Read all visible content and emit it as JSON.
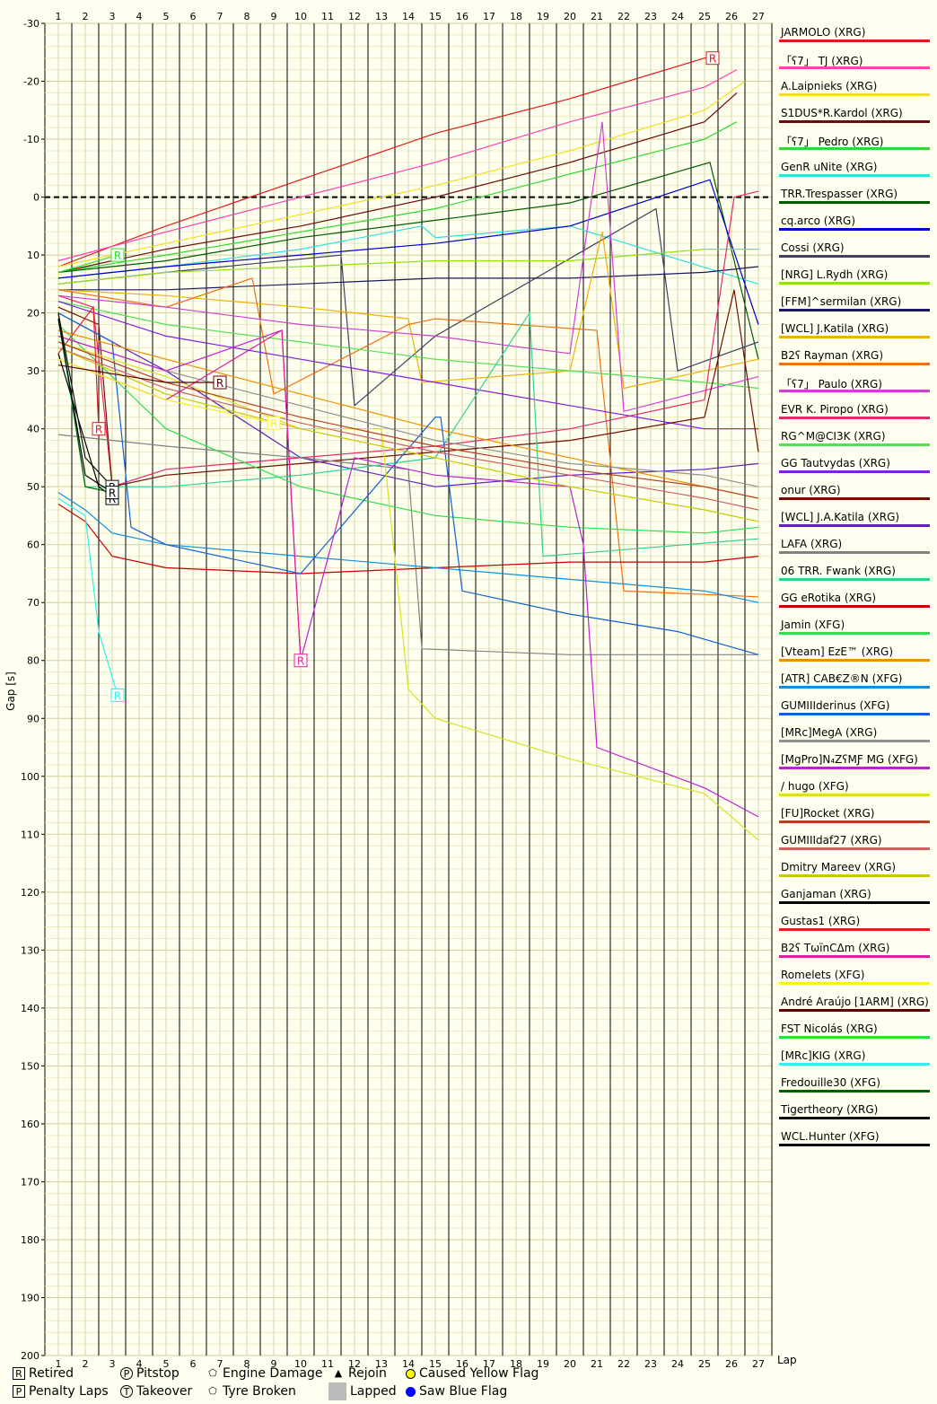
{
  "chart_data": {
    "type": "line",
    "title": "",
    "xlabel": "Lap",
    "ylabel": "Gap [s]",
    "xlim": [
      1,
      27
    ],
    "ylim": [
      -30,
      200
    ],
    "x_ticks": [
      1,
      2,
      3,
      4,
      5,
      6,
      7,
      8,
      9,
      10,
      11,
      12,
      13,
      14,
      15,
      16,
      17,
      18,
      19,
      20,
      21,
      22,
      23,
      24,
      25,
      26,
      27
    ],
    "y_ticks": [
      -30,
      -20,
      -10,
      0,
      10,
      20,
      30,
      40,
      50,
      60,
      70,
      80,
      90,
      100,
      110,
      120,
      130,
      140,
      150,
      160,
      170,
      180,
      190,
      200
    ],
    "series": [
      {
        "name": "JARMOLO (XRG)",
        "color": "#e31a1a",
        "x": [
          1,
          5,
          10,
          15,
          20,
          25,
          25.3
        ],
        "y": [
          12,
          5,
          -3,
          -11,
          -17,
          -24,
          -24
        ]
      },
      {
        "name": "「ʕ7」 TJ (XRG)",
        "color": "#ff40b0",
        "x": [
          1,
          5,
          10,
          15,
          20,
          25,
          26.2
        ],
        "y": [
          11,
          6,
          0,
          -6,
          -13,
          -19,
          -22
        ]
      },
      {
        "name": "A.Laipnieks (XRG)",
        "color": "#f0e020",
        "x": [
          1,
          5,
          10,
          15,
          20,
          25,
          26.5
        ],
        "y": [
          12,
          8,
          3,
          -2,
          -8,
          -15,
          -20
        ]
      },
      {
        "name": "S1DUS*R.Kardol (XRG)",
        "color": "#6a0a0a",
        "x": [
          1,
          5,
          10,
          15,
          20,
          25,
          26.2
        ],
        "y": [
          13,
          9,
          5,
          0,
          -6,
          -13,
          -18
        ]
      },
      {
        "name": "「ʕ7」 Pedro (XRG)",
        "color": "#30d830",
        "x": [
          1,
          5,
          10,
          15,
          20,
          25,
          26.2
        ],
        "y": [
          13,
          10,
          6,
          2,
          -4,
          -10,
          -13
        ]
      },
      {
        "name": "GenR uNite (XRG)",
        "color": "#30e0e0",
        "x": [
          1,
          5,
          10,
          14.5,
          15,
          20,
          27
        ],
        "y": [
          14,
          12,
          9,
          5,
          7,
          5,
          15
        ]
      },
      {
        "name": "TRR.Trespasser (XRG)",
        "color": "#005a00",
        "x": [
          1,
          5,
          10,
          15,
          20,
          25.2,
          27
        ],
        "y": [
          13,
          11,
          7,
          4,
          1,
          -6,
          28
        ]
      },
      {
        "name": "cq.arco (XRG)",
        "color": "#0000c8",
        "x": [
          1,
          5,
          10,
          15,
          20,
          25.2,
          27
        ],
        "y": [
          14,
          12,
          10,
          8,
          5,
          -3,
          22
        ]
      },
      {
        "name": "Cossi (XRG)",
        "color": "#404060",
        "x": [
          1,
          5,
          11.5,
          12,
          15,
          23.2,
          24,
          27
        ],
        "y": [
          15,
          13,
          10,
          36,
          24,
          2,
          30,
          25
        ]
      },
      {
        "name": "[NRG] L.Rydh (XRG)",
        "color": "#90e020",
        "x": [
          1,
          5,
          10,
          15,
          20,
          25,
          27
        ],
        "y": [
          15,
          13,
          12,
          11,
          11,
          9,
          9
        ]
      },
      {
        "name": "[FFM]^sermilan (XRG)",
        "color": "#1a1a60",
        "x": [
          1,
          5,
          10,
          15,
          20,
          25,
          27
        ],
        "y": [
          16,
          16,
          15,
          14,
          14,
          13,
          12
        ]
      },
      {
        "name": "[WCL] J.Katila (XRG)",
        "color": "#f0b000",
        "x": [
          1,
          5,
          10,
          14,
          14.5,
          20,
          21.2,
          22,
          27
        ],
        "y": [
          16,
          17,
          19,
          21,
          32,
          30,
          6,
          33,
          28
        ]
      },
      {
        "name": "B2ʕ Rayman (XRG)",
        "color": "#f07010",
        "x": [
          1,
          5,
          8.2,
          9,
          14,
          15,
          21,
          22,
          27
        ],
        "y": [
          16,
          19,
          14,
          34,
          22,
          21,
          23,
          68,
          69
        ]
      },
      {
        "name": "「ʕ7」 Paulo (XRG)",
        "color": "#d040d0",
        "x": [
          1,
          5,
          10,
          15,
          20,
          21.2,
          22,
          27
        ],
        "y": [
          17,
          19,
          22,
          24,
          27,
          -13,
          37,
          31
        ]
      },
      {
        "name": "EVR K. Piropo (XRG)",
        "color": "#e8286a",
        "x": [
          1,
          2.3,
          3,
          5,
          10,
          15,
          20,
          25,
          26.1,
          27
        ],
        "y": [
          17,
          19,
          50,
          47,
          45,
          43,
          40,
          35,
          0,
          -1
        ]
      },
      {
        "name": "RG^M@CI3K (XRG)",
        "color": "#50e050",
        "x": [
          1,
          5,
          10,
          15,
          20,
          25,
          27
        ],
        "y": [
          18,
          22,
          25,
          28,
          30,
          32,
          33
        ]
      },
      {
        "name": "GG Tautvydas (XRG)",
        "color": "#8020e0",
        "x": [
          1,
          5,
          10,
          15,
          20,
          25,
          27
        ],
        "y": [
          18,
          24,
          28,
          32,
          36,
          40,
          40
        ]
      },
      {
        "name": "onur (XRG)",
        "color": "#701000",
        "x": [
          1,
          2.5,
          3,
          5,
          10,
          15,
          20,
          25,
          26.1,
          27
        ],
        "y": [
          19,
          22,
          50,
          48,
          46,
          44,
          42,
          38,
          16,
          44
        ]
      },
      {
        "name": "[WCL] J.A.Katila (XRG)",
        "color": "#6020c0",
        "x": [
          1,
          5,
          10,
          15,
          20,
          25,
          27
        ],
        "y": [
          20,
          30,
          45,
          50,
          48,
          47,
          46
        ]
      },
      {
        "name": "LAFA (XRG)",
        "color": "#808080",
        "x": [
          1,
          5,
          10,
          14,
          14.5,
          20,
          27
        ],
        "y": [
          41,
          43,
          45,
          47,
          78,
          79,
          79
        ]
      },
      {
        "name": "06 TRR. Fwank (XRG)",
        "color": "#30d090",
        "x": [
          1,
          2,
          5,
          10,
          15,
          18.5,
          19,
          27
        ],
        "y": [
          21,
          50,
          50,
          48,
          45,
          20,
          62,
          59
        ]
      },
      {
        "name": "GG eRotika (XRG)",
        "color": "#c80000",
        "x": [
          1,
          2,
          3,
          5,
          10,
          15,
          20,
          25,
          27
        ],
        "y": [
          53,
          56,
          62,
          64,
          65,
          64,
          63,
          63,
          62
        ]
      },
      {
        "name": "Jamin (XFG)",
        "color": "#30e050",
        "x": [
          1,
          5,
          10,
          15,
          20,
          25,
          27
        ],
        "y": [
          22,
          40,
          50,
          55,
          57,
          58,
          57
        ]
      },
      {
        "name": "[Vteam] EzE™ (XRG)",
        "color": "#f09000",
        "x": [
          1,
          5,
          10,
          15,
          20,
          25,
          27
        ],
        "y": [
          23,
          28,
          34,
          40,
          45,
          50,
          52
        ]
      },
      {
        "name": "[ATR] CAB€Z®N (XFG)",
        "color": "#1090e0",
        "x": [
          1,
          2,
          3,
          5,
          10,
          15,
          20,
          25,
          27
        ],
        "y": [
          51,
          54,
          58,
          60,
          62,
          64,
          66,
          68,
          70
        ]
      },
      {
        "name": "GUMIIIderinus (XFG)",
        "color": "#1060d0",
        "x": [
          1,
          3,
          3.7,
          5,
          10,
          15,
          15.2,
          16,
          20,
          24,
          25.5,
          27
        ],
        "y": [
          20,
          25,
          57,
          60,
          65,
          38,
          38,
          68,
          72,
          75,
          77,
          79
        ]
      },
      {
        "name": "[MRc]MegA (XRG)",
        "color": "#909090",
        "x": [
          1,
          5,
          10,
          15,
          20,
          25,
          27
        ],
        "y": [
          24,
          30,
          36,
          42,
          46,
          48,
          50
        ]
      },
      {
        "name": "[MgPro]N₄ZʕMƑ MG (XFG)",
        "color": "#c020d0",
        "x": [
          1,
          5,
          9.3,
          10,
          12,
          15,
          20,
          20.5,
          21,
          25,
          27
        ],
        "y": [
          24,
          30,
          23,
          80,
          45,
          48,
          50,
          60,
          95,
          102,
          107
        ]
      },
      {
        "name": "/ hugo (XFG)",
        "color": "#d8e020",
        "x": [
          1,
          5,
          10,
          13,
          14,
          15,
          20,
          25,
          27
        ],
        "y": [
          25,
          31,
          40,
          40,
          85,
          90,
          97,
          103,
          111
        ]
      },
      {
        "name": "[FU]Rocket (XRG)",
        "color": "#b84020",
        "x": [
          1,
          5,
          10,
          15,
          20,
          25,
          27
        ],
        "y": [
          25,
          32,
          38,
          43,
          47,
          50,
          52
        ]
      },
      {
        "name": "GUMIIIdaf27 (XRG)",
        "color": "#d06060",
        "x": [
          1,
          5,
          10,
          15,
          20,
          25,
          27
        ],
        "y": [
          26,
          33,
          39,
          44,
          48,
          52,
          54
        ]
      },
      {
        "name": "Dmitry Mareev (XRG)",
        "color": "#c8c800",
        "x": [
          1,
          5,
          10,
          15,
          20,
          25,
          27
        ],
        "y": [
          26,
          34,
          40,
          45,
          50,
          54,
          56
        ]
      },
      {
        "name": "Ganjaman (XRG)",
        "color": "#000000",
        "x": [
          1,
          2.5,
          2.8,
          3
        ],
        "y": [
          27,
          50,
          51,
          52
        ]
      },
      {
        "name": "Gustas1 (XRG)",
        "color": "#e02020",
        "x": [
          1,
          2.3,
          2.5
        ],
        "y": [
          27,
          19,
          40
        ]
      },
      {
        "name": "B2ʕ TωïnCΔm (XRG)",
        "color": "#e020a0",
        "x": [
          1,
          5,
          9.3,
          10
        ],
        "y": [
          28,
          35,
          23,
          80
        ]
      },
      {
        "name": "Romelets (XFG)",
        "color": "#f8f020",
        "x": [
          1,
          5,
          8,
          9
        ],
        "y": [
          28,
          35,
          38,
          39
        ]
      },
      {
        "name": "André Araújo [1ARM] (XRG)",
        "color": "#600000",
        "x": [
          1,
          5,
          7
        ],
        "y": [
          29,
          32,
          32
        ]
      },
      {
        "name": "FST Nicolás (XRG)",
        "color": "#30e030",
        "x": [
          1,
          3.2
        ],
        "y": [
          13,
          10
        ]
      },
      {
        "name": "[MRc]KIG (XRG)",
        "color": "#30f0f0",
        "x": [
          1,
          2,
          2.5,
          3.2
        ],
        "y": [
          52,
          55,
          75,
          86
        ]
      },
      {
        "name": "Fredouille30 (XFG)",
        "color": "#006000",
        "x": [
          1,
          2,
          3
        ],
        "y": [
          20,
          50,
          51
        ]
      },
      {
        "name": "Tigertheory (XRG)",
        "color": "#101010",
        "x": [
          1,
          2,
          3
        ],
        "y": [
          20,
          45,
          50
        ]
      },
      {
        "name": "WCL.Hunter (XFG)",
        "color": "#000000",
        "x": [
          1,
          2,
          3
        ],
        "y": [
          21,
          48,
          51
        ]
      }
    ],
    "legend_position": "right",
    "grid": true
  },
  "legend_key": {
    "retired": "Retired",
    "pitstop": "Pitstop",
    "engine_damage": "Engine Damage",
    "rejoin": "Rejoin",
    "caused_yellow": "Caused Yellow Flag",
    "penalty_laps": "Penalty Laps",
    "takeover": "Takeover",
    "tyre_broken": "Tyre Broken",
    "lapped": "Lapped",
    "saw_blue": "Saw Blue Flag"
  },
  "icons": {
    "R": "R",
    "P": "P",
    "T": "T",
    "E": "E",
    "rejoin": "▲"
  }
}
